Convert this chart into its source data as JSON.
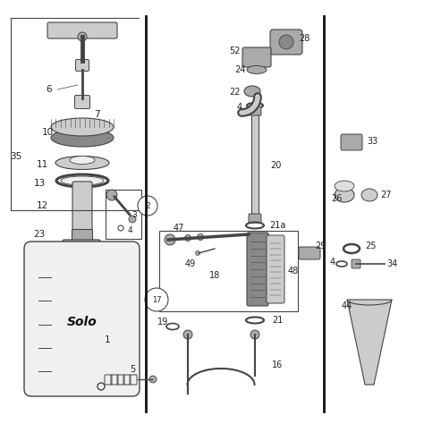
{
  "bg_color": "#ffffff",
  "line_color": "#444444",
  "fill_light": "#cccccc",
  "fill_mid": "#aaaaaa",
  "fill_dark": "#888888",
  "label_color": "#222222",
  "figsize": [
    4.74,
    4.74
  ],
  "dpi": 100
}
